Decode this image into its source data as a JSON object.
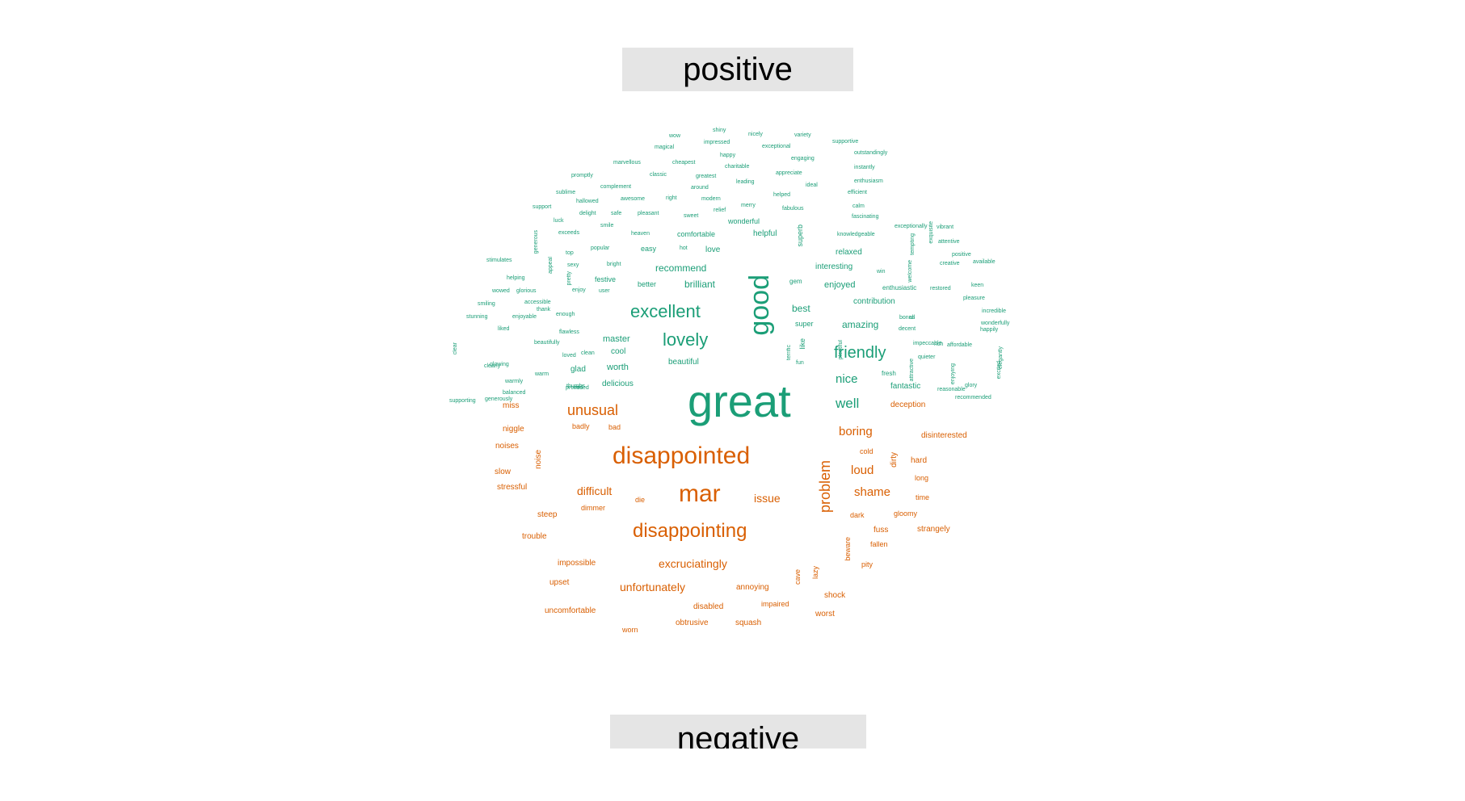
{
  "panels": {
    "positive_label": "positive",
    "negative_label": "negative"
  },
  "colors": {
    "positive": "#1b9e77",
    "negative": "#d95f02",
    "banner_bg": "#e5e5e5"
  },
  "words": {
    "positive": [
      {
        "t": "great",
        "s": 56
      },
      {
        "t": "good",
        "s": 34,
        "v": true
      },
      {
        "t": "excellent",
        "s": 22
      },
      {
        "t": "lovely",
        "s": 22
      },
      {
        "t": "friendly",
        "s": 20
      },
      {
        "t": "well",
        "s": 17
      },
      {
        "t": "nice",
        "s": 15
      },
      {
        "t": "amazing",
        "s": 12
      },
      {
        "t": "best",
        "s": 12
      },
      {
        "t": "brilliant",
        "s": 12
      },
      {
        "t": "recommend",
        "s": 12
      },
      {
        "t": "master",
        "s": 11
      },
      {
        "t": "worth",
        "s": 11
      },
      {
        "t": "glad",
        "s": 10
      },
      {
        "t": "delicious",
        "s": 10
      },
      {
        "t": "beautiful",
        "s": 10
      },
      {
        "t": "cool",
        "s": 10
      },
      {
        "t": "enjoyed",
        "s": 11
      },
      {
        "t": "contribution",
        "s": 10
      },
      {
        "t": "interesting",
        "s": 10
      },
      {
        "t": "relaxed",
        "s": 10
      },
      {
        "t": "helpful",
        "s": 10
      },
      {
        "t": "wonderful",
        "s": 9
      },
      {
        "t": "comfortable",
        "s": 9
      },
      {
        "t": "easy",
        "s": 9
      },
      {
        "t": "love",
        "s": 10
      },
      {
        "t": "festive",
        "s": 9
      },
      {
        "t": "better",
        "s": 9
      },
      {
        "t": "superb",
        "s": 9,
        "v": true
      },
      {
        "t": "super",
        "s": 9
      },
      {
        "t": "fantastic",
        "s": 10
      },
      {
        "t": "fresh",
        "s": 8
      },
      {
        "t": "gem",
        "s": 8
      },
      {
        "t": "fun",
        "s": 7
      },
      {
        "t": "terrific",
        "s": 7,
        "v": true
      },
      {
        "t": "like",
        "s": 9,
        "v": true
      },
      {
        "t": "win",
        "s": 7
      },
      {
        "t": "enthusiastic",
        "s": 8
      },
      {
        "t": "knowledgeable",
        "s": 7
      },
      {
        "t": "fascinating",
        "s": 7
      },
      {
        "t": "calm",
        "s": 7
      },
      {
        "t": "efficient",
        "s": 7
      },
      {
        "t": "enthusiasm",
        "s": 7
      },
      {
        "t": "instantly",
        "s": 7
      },
      {
        "t": "outstandingly",
        "s": 7
      },
      {
        "t": "supportive",
        "s": 7
      },
      {
        "t": "variety",
        "s": 7
      },
      {
        "t": "nicely",
        "s": 7
      },
      {
        "t": "shiny",
        "s": 7
      },
      {
        "t": "wow",
        "s": 7
      },
      {
        "t": "impressed",
        "s": 7
      },
      {
        "t": "exceptional",
        "s": 7
      },
      {
        "t": "happy",
        "s": 7
      },
      {
        "t": "magical",
        "s": 7
      },
      {
        "t": "engaging",
        "s": 7
      },
      {
        "t": "charitable",
        "s": 7
      },
      {
        "t": "marvellous",
        "s": 7
      },
      {
        "t": "cheapest",
        "s": 7
      },
      {
        "t": "appreciate",
        "s": 7
      },
      {
        "t": "leading",
        "s": 7
      },
      {
        "t": "greatest",
        "s": 7
      },
      {
        "t": "classic",
        "s": 7
      },
      {
        "t": "promptly",
        "s": 7
      },
      {
        "t": "ideal",
        "s": 7
      },
      {
        "t": "around",
        "s": 7
      },
      {
        "t": "helped",
        "s": 7
      },
      {
        "t": "complement",
        "s": 7
      },
      {
        "t": "modern",
        "s": 7
      },
      {
        "t": "right",
        "s": 7
      },
      {
        "t": "awesome",
        "s": 7
      },
      {
        "t": "merry",
        "s": 7
      },
      {
        "t": "fabulous",
        "s": 7
      },
      {
        "t": "relief",
        "s": 7
      },
      {
        "t": "sublime",
        "s": 7
      },
      {
        "t": "hallowed",
        "s": 7
      },
      {
        "t": "sweet",
        "s": 7
      },
      {
        "t": "pleasant",
        "s": 7
      },
      {
        "t": "safe",
        "s": 7
      },
      {
        "t": "delight",
        "s": 7
      },
      {
        "t": "smile",
        "s": 7
      },
      {
        "t": "heaven",
        "s": 7
      },
      {
        "t": "support",
        "s": 7
      },
      {
        "t": "luck",
        "s": 7
      },
      {
        "t": "exceeds",
        "s": 7
      },
      {
        "t": "popular",
        "s": 7
      },
      {
        "t": "hot",
        "s": 7
      },
      {
        "t": "bright",
        "s": 7
      },
      {
        "t": "top",
        "s": 7
      },
      {
        "t": "sexy",
        "s": 7
      },
      {
        "t": "enjoy",
        "s": 7
      },
      {
        "t": "user",
        "s": 7
      },
      {
        "t": "stimulates",
        "s": 7
      },
      {
        "t": "helping",
        "s": 7
      },
      {
        "t": "glorious",
        "s": 7
      },
      {
        "t": "wowed",
        "s": 7
      },
      {
        "t": "smiling",
        "s": 7
      },
      {
        "t": "accessible",
        "s": 7
      },
      {
        "t": "stunning",
        "s": 7
      },
      {
        "t": "enough",
        "s": 7
      },
      {
        "t": "enjoyable",
        "s": 7
      },
      {
        "t": "flawless",
        "s": 7
      },
      {
        "t": "thank",
        "s": 7
      },
      {
        "t": "liked",
        "s": 7
      },
      {
        "t": "beautifully",
        "s": 7
      },
      {
        "t": "clean",
        "s": 7
      },
      {
        "t": "glowing",
        "s": 7
      },
      {
        "t": "loved",
        "s": 7
      },
      {
        "t": "warm",
        "s": 7
      },
      {
        "t": "balanced",
        "s": 7
      },
      {
        "t": "clearly",
        "s": 7
      },
      {
        "t": "warmly",
        "s": 7
      },
      {
        "t": "red",
        "s": 7
      },
      {
        "t": "generously",
        "s": 7
      },
      {
        "t": "thumbs",
        "s": 7
      },
      {
        "t": "supporting",
        "s": 7
      },
      {
        "t": "promised",
        "s": 7
      },
      {
        "t": "exceptionally",
        "s": 7
      },
      {
        "t": "vibrant",
        "s": 7
      },
      {
        "t": "attentive",
        "s": 7
      },
      {
        "t": "positive",
        "s": 7
      },
      {
        "t": "creative",
        "s": 7
      },
      {
        "t": "available",
        "s": 7
      },
      {
        "t": "keen",
        "s": 7
      },
      {
        "t": "restored",
        "s": 7
      },
      {
        "t": "pleasure",
        "s": 7
      },
      {
        "t": "incredible",
        "s": 7
      },
      {
        "t": "all",
        "s": 7
      },
      {
        "t": "wonderfully",
        "s": 7
      },
      {
        "t": "decent",
        "s": 7
      },
      {
        "t": "impeccable",
        "s": 7
      },
      {
        "t": "rich",
        "s": 7
      },
      {
        "t": "affordable",
        "s": 7
      },
      {
        "t": "quieter",
        "s": 7
      },
      {
        "t": "glory",
        "s": 7
      },
      {
        "t": "reasonable",
        "s": 7
      },
      {
        "t": "recommended",
        "s": 7
      },
      {
        "t": "bonus",
        "s": 7
      },
      {
        "t": "happily",
        "s": 7
      },
      {
        "t": "elegantly",
        "s": 7,
        "v": true
      },
      {
        "t": "enjoying",
        "s": 7,
        "v": true
      },
      {
        "t": "attractive",
        "s": 7,
        "v": true
      },
      {
        "t": "excited",
        "s": 7,
        "v": true
      },
      {
        "t": "plentiful",
        "s": 7,
        "v": true
      },
      {
        "t": "exquisite",
        "s": 7,
        "v": true
      },
      {
        "t": "tempting",
        "s": 7,
        "v": true
      },
      {
        "t": "welcome",
        "s": 7,
        "v": true
      },
      {
        "t": "generous",
        "s": 7,
        "v": true
      },
      {
        "t": "appeal",
        "s": 7,
        "v": true
      },
      {
        "t": "pretty",
        "s": 7,
        "v": true
      },
      {
        "t": "clear",
        "s": 7,
        "v": true
      }
    ],
    "negative": [
      {
        "t": "disappointed",
        "s": 30
      },
      {
        "t": "mar",
        "s": 30
      },
      {
        "t": "disappointing",
        "s": 24
      },
      {
        "t": "unusual",
        "s": 18
      },
      {
        "t": "problem",
        "s": 18,
        "v": true
      },
      {
        "t": "boring",
        "s": 15
      },
      {
        "t": "loud",
        "s": 15
      },
      {
        "t": "shame",
        "s": 15
      },
      {
        "t": "difficult",
        "s": 14
      },
      {
        "t": "issue",
        "s": 14
      },
      {
        "t": "excruciatingly",
        "s": 14
      },
      {
        "t": "unfortunately",
        "s": 14
      },
      {
        "t": "deception",
        "s": 10
      },
      {
        "t": "disinterested",
        "s": 10
      },
      {
        "t": "hard",
        "s": 10
      },
      {
        "t": "dirty",
        "s": 10,
        "v": true
      },
      {
        "t": "cold",
        "s": 9
      },
      {
        "t": "long",
        "s": 9
      },
      {
        "t": "time",
        "s": 9
      },
      {
        "t": "gloomy",
        "s": 9
      },
      {
        "t": "dark",
        "s": 9
      },
      {
        "t": "strangely",
        "s": 10
      },
      {
        "t": "fuss",
        "s": 10
      },
      {
        "t": "fallen",
        "s": 9
      },
      {
        "t": "beware",
        "s": 9,
        "v": true
      },
      {
        "t": "pity",
        "s": 9
      },
      {
        "t": "shock",
        "s": 10
      },
      {
        "t": "worst",
        "s": 10
      },
      {
        "t": "lazy",
        "s": 9,
        "v": true
      },
      {
        "t": "cave",
        "s": 9,
        "v": true
      },
      {
        "t": "impaired",
        "s": 9
      },
      {
        "t": "squash",
        "s": 10
      },
      {
        "t": "annoying",
        "s": 10
      },
      {
        "t": "disabled",
        "s": 10
      },
      {
        "t": "obtrusive",
        "s": 10
      },
      {
        "t": "worn",
        "s": 9
      },
      {
        "t": "uncomfortable",
        "s": 10
      },
      {
        "t": "upset",
        "s": 10
      },
      {
        "t": "impossible",
        "s": 10
      },
      {
        "t": "trouble",
        "s": 10
      },
      {
        "t": "steep",
        "s": 10
      },
      {
        "t": "dimmer",
        "s": 9
      },
      {
        "t": "die",
        "s": 9
      },
      {
        "t": "stressful",
        "s": 10
      },
      {
        "t": "slow",
        "s": 10
      },
      {
        "t": "noise",
        "s": 10,
        "v": true
      },
      {
        "t": "noises",
        "s": 10
      },
      {
        "t": "niggle",
        "s": 10
      },
      {
        "t": "miss",
        "s": 10
      },
      {
        "t": "badly",
        "s": 9
      },
      {
        "t": "bad",
        "s": 9
      }
    ]
  }
}
